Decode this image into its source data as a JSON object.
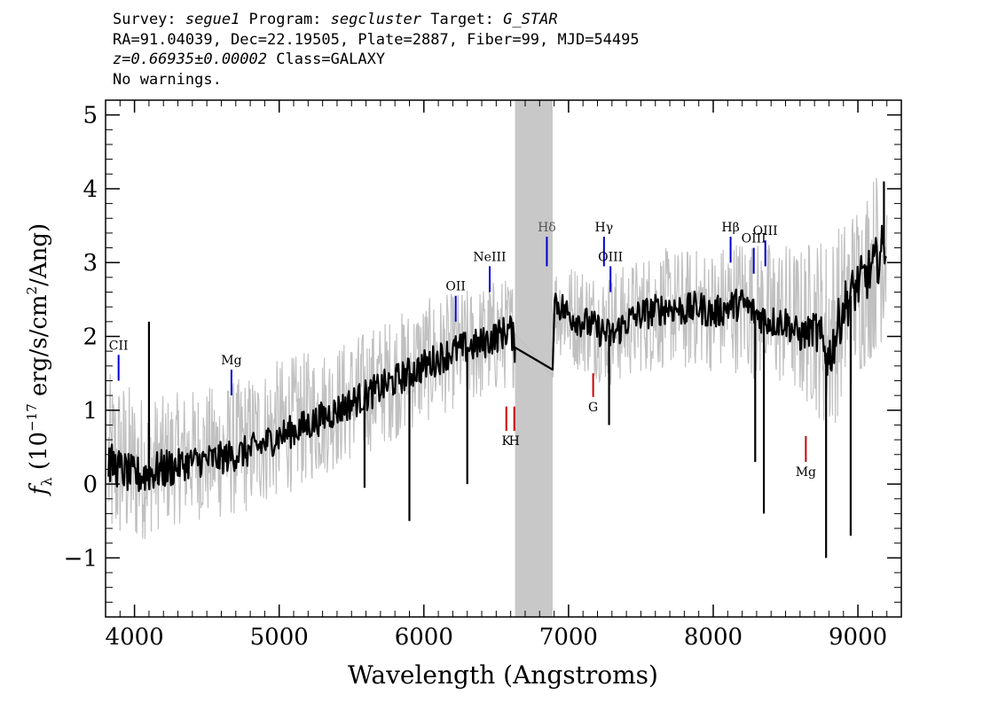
{
  "header": {
    "line1": {
      "survey_label": "Survey: ",
      "survey": "segue1",
      "program_label": " Program: ",
      "program": "segcluster",
      "target_label": " Target: ",
      "target": "G_STAR"
    },
    "line2": "RA=91.04039, Dec=22.19505, Plate=2887, Fiber=99, MJD=54495",
    "line3": {
      "redshift": "z=0.66935±0.00002",
      "class_text": " Class=GALAXY"
    },
    "line4": "No warnings."
  },
  "chart_data": {
    "type": "line",
    "xlabel": "Wavelength (Angstroms)",
    "ylabel": "f_λ (10^-17 erg/s/cm^2/Ang)",
    "xlim": [
      3800,
      9300
    ],
    "ylim": [
      -1.8,
      5.2
    ],
    "x_ticks": [
      4000,
      5000,
      6000,
      7000,
      8000,
      9000
    ],
    "y_ticks": [
      -1,
      0,
      1,
      2,
      3,
      4,
      5
    ],
    "masked_region": [
      6630,
      6890
    ],
    "series": [
      {
        "role": "flux (smoothed)",
        "color": "#000000",
        "x": [
          3820,
          3900,
          4000,
          4100,
          4200,
          4400,
          4600,
          4800,
          5000,
          5200,
          5400,
          5600,
          5800,
          6000,
          6200,
          6400,
          6500,
          6600,
          6630,
          6890,
          6900,
          7000,
          7100,
          7200,
          7300,
          7400,
          7500,
          7600,
          7700,
          7800,
          7900,
          8000,
          8100,
          8200,
          8300,
          8400,
          8500,
          8600,
          8700,
          8800,
          8900,
          9000,
          9100,
          9200
        ],
        "y": [
          0.3,
          0.2,
          0.1,
          0.15,
          0.2,
          0.3,
          0.35,
          0.45,
          0.65,
          0.8,
          1.0,
          1.2,
          1.4,
          1.6,
          1.8,
          1.9,
          2.0,
          2.1,
          1.85,
          1.55,
          2.5,
          2.3,
          2.2,
          2.1,
          2.0,
          2.2,
          2.3,
          2.35,
          2.4,
          2.35,
          2.4,
          2.3,
          2.4,
          2.45,
          2.3,
          2.2,
          2.2,
          2.0,
          2.1,
          1.7,
          2.4,
          2.7,
          2.9,
          3.3
        ]
      },
      {
        "role": "flux error band",
        "color": "#c0c0c0",
        "x": [
          3820,
          3900,
          4000,
          4100,
          4200,
          4400,
          4600,
          4800,
          5000,
          5200,
          5400,
          5600,
          5800,
          6000,
          6200,
          6400,
          6500,
          6600,
          6630,
          6890,
          6900,
          7000,
          7100,
          7200,
          7300,
          7400,
          7500,
          7600,
          7700,
          7800,
          7900,
          8000,
          8100,
          8200,
          8300,
          8400,
          8500,
          8600,
          8700,
          8800,
          8900,
          9000,
          9100,
          9200
        ],
        "upper": [
          1.5,
          1.5,
          1.3,
          1.2,
          1.2,
          1.3,
          1.35,
          1.5,
          1.7,
          1.8,
          1.9,
          2.1,
          2.3,
          2.5,
          2.6,
          2.7,
          2.8,
          2.8,
          2.8,
          2.8,
          3.0,
          3.0,
          3.0,
          2.9,
          2.9,
          3.0,
          3.1,
          3.2,
          3.2,
          3.2,
          3.2,
          3.2,
          3.3,
          3.4,
          3.3,
          3.3,
          3.3,
          3.2,
          3.4,
          3.4,
          3.6,
          3.9,
          4.2,
          4.6
        ],
        "lower": [
          -1.0,
          -0.9,
          -0.9,
          -0.7,
          -0.6,
          -0.5,
          -0.5,
          -0.4,
          -0.2,
          0.0,
          0.2,
          0.4,
          0.6,
          0.8,
          1.0,
          1.1,
          1.2,
          1.3,
          1.3,
          1.3,
          1.8,
          1.6,
          1.5,
          1.4,
          1.3,
          1.4,
          1.5,
          1.5,
          1.6,
          1.5,
          1.6,
          1.5,
          1.5,
          1.5,
          1.4,
          1.3,
          1.3,
          1.1,
          1.0,
          0.6,
          1.1,
          1.4,
          1.7,
          2.0
        ]
      }
    ],
    "emission_lines": [
      {
        "name": "CII",
        "x": 3890,
        "y0": 1.4,
        "y1": 1.75,
        "color": "#0000cc"
      },
      {
        "name": "Mg",
        "x": 4670,
        "y0": 1.2,
        "y1": 1.55,
        "color": "#0000cc"
      },
      {
        "name": "OII",
        "x": 6220,
        "y0": 2.2,
        "y1": 2.55,
        "color": "#0000cc"
      },
      {
        "name": "NeIII",
        "x": 6455,
        "y0": 2.6,
        "y1": 2.95,
        "color": "#0000cc"
      },
      {
        "name": "Hδ",
        "x": 6850,
        "y0": 2.95,
        "y1": 3.35,
        "color": "#0000cc"
      },
      {
        "name": "Hγ",
        "x": 7245,
        "y0": 2.95,
        "y1": 3.35,
        "color": "#0000cc"
      },
      {
        "name": "OIII",
        "x": 7290,
        "y0": 2.6,
        "y1": 2.95,
        "color": "#0000cc"
      },
      {
        "name": "Hβ",
        "x": 8120,
        "y0": 3.0,
        "y1": 3.35,
        "color": "#0000cc"
      },
      {
        "name": "OIII",
        "x": 8280,
        "y0": 2.85,
        "y1": 3.2,
        "color": "#0000cc"
      },
      {
        "name": "OIII",
        "x": 8360,
        "y0": 2.95,
        "y1": 3.3,
        "color": "#0000cc"
      }
    ],
    "absorption_lines": [
      {
        "name": "K",
        "x": 6570,
        "y0": 0.72,
        "y1": 1.05,
        "color": "#cc0000"
      },
      {
        "name": "H",
        "x": 6625,
        "y0": 0.72,
        "y1": 1.05,
        "color": "#cc0000"
      },
      {
        "name": "G",
        "x": 7170,
        "y0": 1.18,
        "y1": 1.5,
        "color": "#cc0000"
      },
      {
        "name": "Mg",
        "x": 8640,
        "y0": 0.3,
        "y1": 0.65,
        "color": "#cc0000"
      }
    ],
    "spikes": [
      {
        "x": 4100,
        "y": 2.2
      },
      {
        "x": 5590,
        "y": -0.05
      },
      {
        "x": 5900,
        "y": -0.5
      },
      {
        "x": 6300,
        "y": 0.0
      },
      {
        "x": 7280,
        "y": 0.8
      },
      {
        "x": 8290,
        "y": 0.3
      },
      {
        "x": 8350,
        "y": -0.4
      },
      {
        "x": 8780,
        "y": -1.0
      },
      {
        "x": 8950,
        "y": -0.7
      },
      {
        "x": 9180,
        "y": 4.1
      }
    ]
  }
}
